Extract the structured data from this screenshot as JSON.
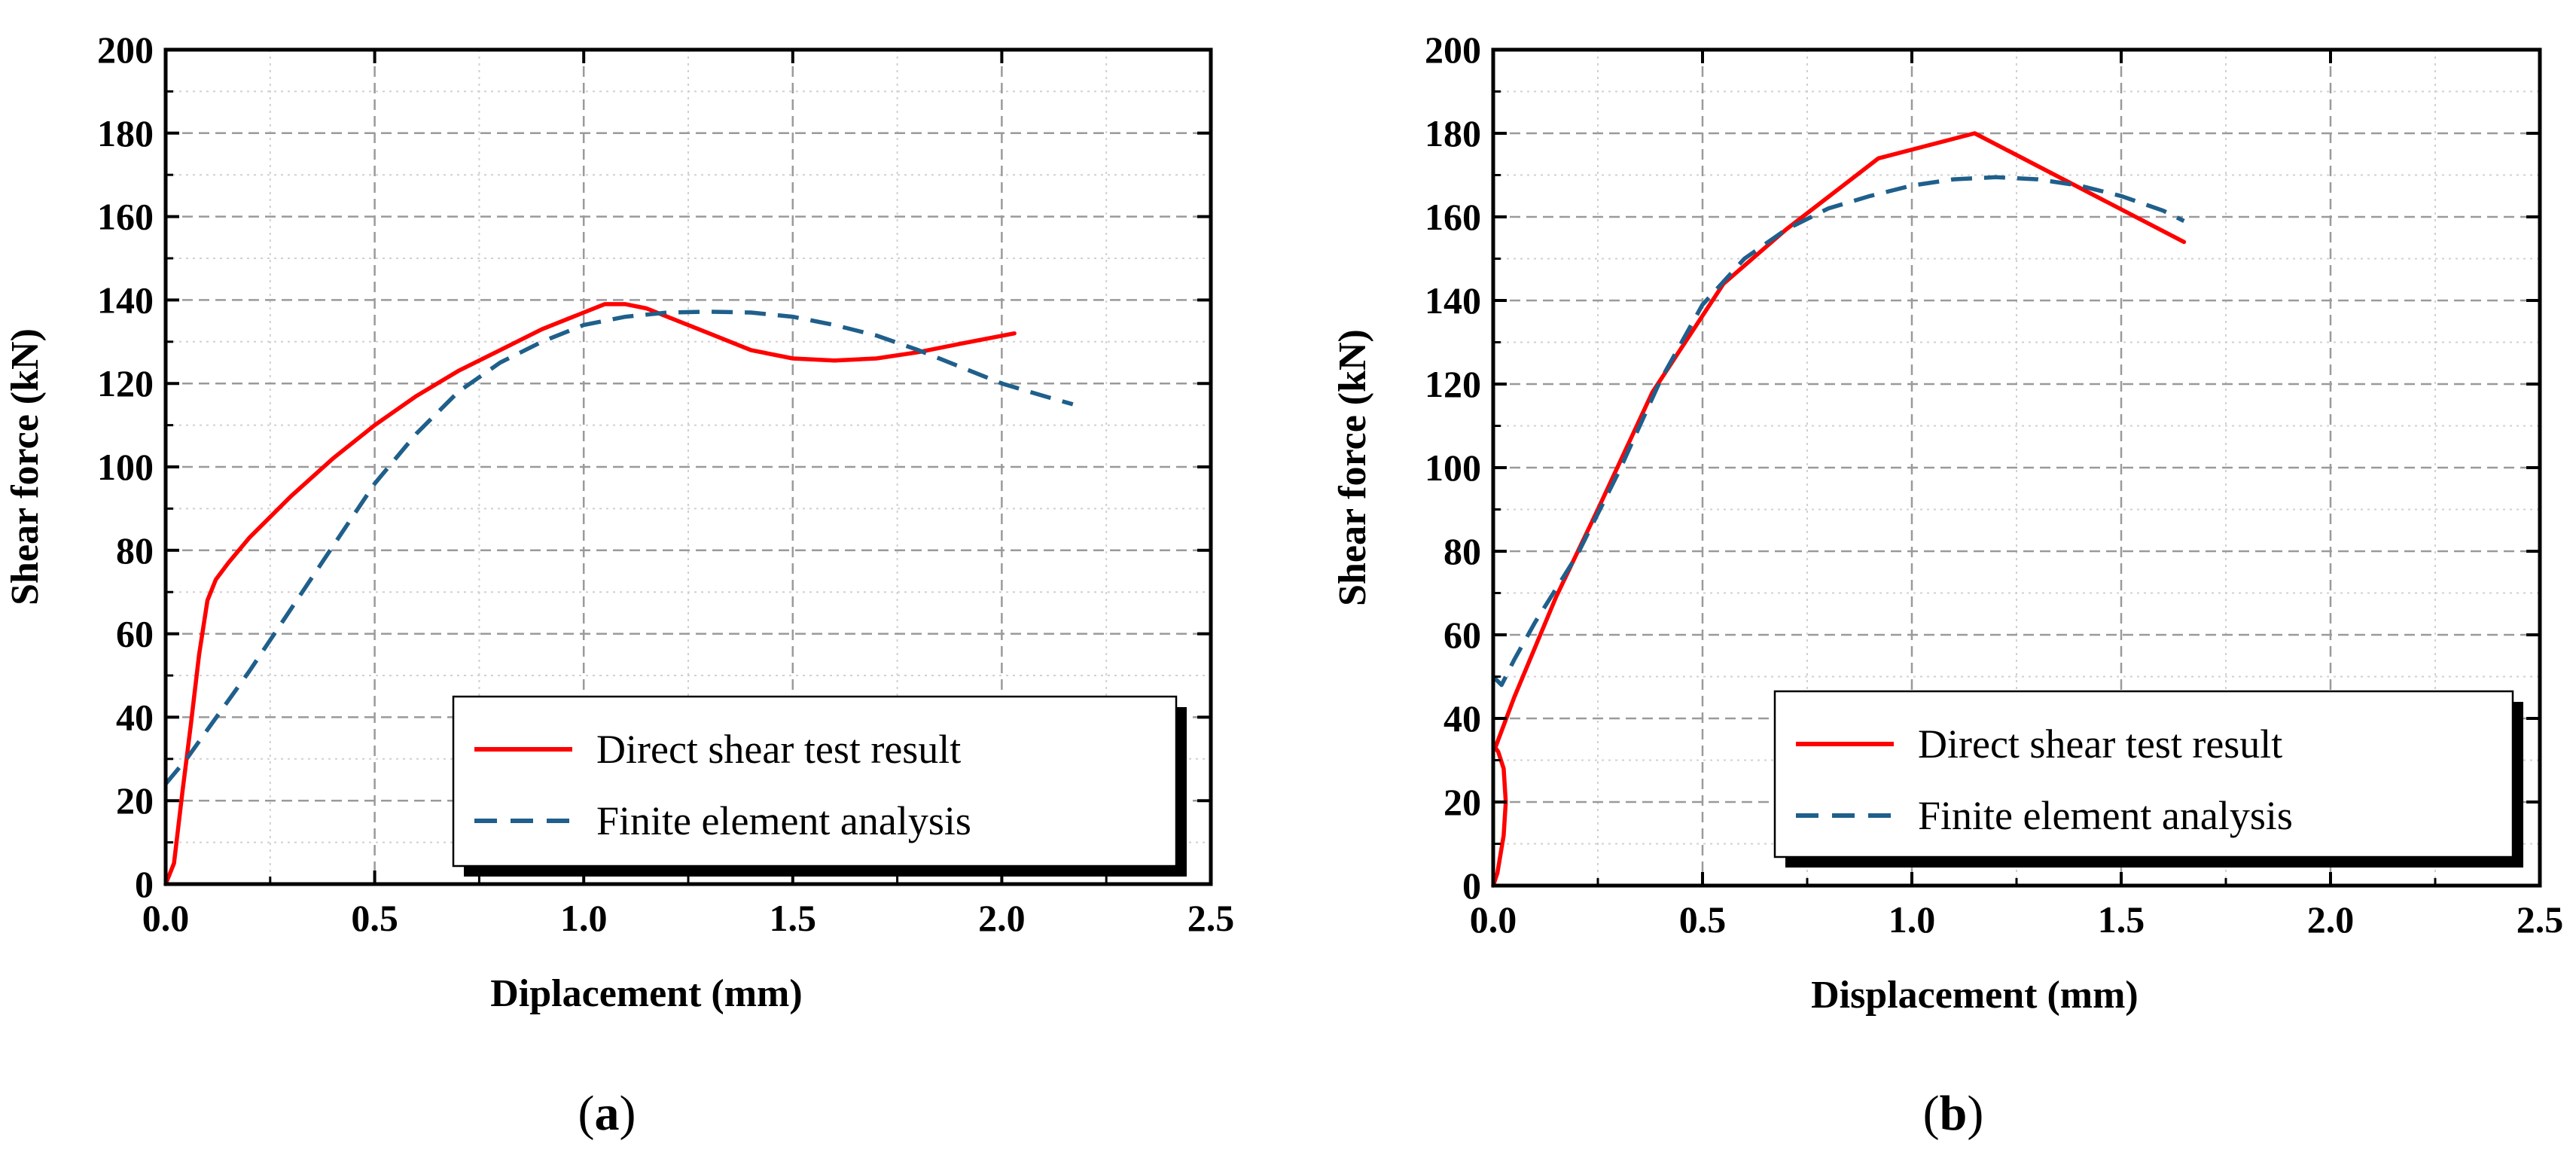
{
  "chart_data": [
    {
      "type": "line",
      "panel": "a",
      "caption": {
        "open": "(",
        "letter": "a",
        "close": ")"
      },
      "xlabel": "Diplacement (mm)",
      "ylabel": "Shear force (kN)",
      "xlim": [
        0,
        2.5
      ],
      "ylim": [
        0,
        200
      ],
      "xticks": [
        0.0,
        0.5,
        1.0,
        1.5,
        2.0,
        2.5
      ],
      "xtick_labels": [
        "0.0",
        "0.5",
        "1.0",
        "1.5",
        "2.0",
        "2.5"
      ],
      "yticks": [
        0,
        20,
        40,
        60,
        80,
        100,
        120,
        140,
        160,
        180,
        200
      ],
      "ytick_labels": [
        "0",
        "20",
        "40",
        "60",
        "80",
        "100",
        "120",
        "140",
        "160",
        "180",
        "200"
      ],
      "grid": true,
      "legend_position": "bottom-right",
      "series": [
        {
          "name": "Direct shear test result",
          "color": "#ff0000",
          "style": "solid",
          "x": [
            0.0,
            0.02,
            0.04,
            0.06,
            0.08,
            0.1,
            0.12,
            0.15,
            0.2,
            0.3,
            0.4,
            0.5,
            0.6,
            0.7,
            0.8,
            0.9,
            1.0,
            1.05,
            1.1,
            1.15,
            1.2,
            1.3,
            1.4,
            1.5,
            1.6,
            1.7,
            1.8,
            1.9,
            2.03
          ],
          "y": [
            0,
            5,
            22,
            38,
            55,
            68,
            73,
            77,
            83,
            93,
            102,
            110,
            117,
            123,
            128,
            133,
            137,
            139,
            139,
            138,
            136,
            132,
            128,
            126,
            125.5,
            126,
            127.5,
            129.5,
            132
          ]
        },
        {
          "name": "Finite element analysis",
          "color": "#1f5f8b",
          "style": "dashed",
          "x": [
            0.0,
            0.05,
            0.1,
            0.2,
            0.3,
            0.4,
            0.5,
            0.6,
            0.7,
            0.8,
            0.9,
            1.0,
            1.1,
            1.2,
            1.3,
            1.4,
            1.5,
            1.6,
            1.7,
            1.8,
            1.9,
            2.0,
            2.1,
            2.17
          ],
          "y": [
            24,
            30,
            37,
            51,
            66,
            81,
            96,
            108,
            118,
            125,
            130,
            134,
            136,
            137,
            137.2,
            137,
            136,
            134,
            131.5,
            128,
            124,
            120,
            117,
            115
          ]
        }
      ]
    },
    {
      "type": "line",
      "panel": "b",
      "caption": {
        "open": "(",
        "letter": "b",
        "close": ")"
      },
      "xlabel": "Displacement (mm)",
      "ylabel": "Shear force (kN)",
      "xlim": [
        0,
        2.5
      ],
      "ylim": [
        0,
        200
      ],
      "xticks": [
        0.0,
        0.5,
        1.0,
        1.5,
        2.0,
        2.5
      ],
      "xtick_labels": [
        "0.0",
        "0.5",
        "1.0",
        "1.5",
        "2.0",
        "2.5"
      ],
      "yticks": [
        0,
        20,
        40,
        60,
        80,
        100,
        120,
        140,
        160,
        180,
        200
      ],
      "ytick_labels": [
        "0",
        "20",
        "40",
        "60",
        "80",
        "100",
        "120",
        "140",
        "160",
        "180",
        "200"
      ],
      "grid": true,
      "legend_position": "bottom-right",
      "series": [
        {
          "name": "Direct shear test result",
          "color": "#ff0000",
          "style": "solid",
          "x": [
            0.0,
            0.01,
            0.025,
            0.03,
            0.025,
            0.012,
            0.005,
            0.05,
            0.1,
            0.15,
            0.25,
            0.38,
            0.55,
            0.7,
            0.92,
            1.15,
            1.65
          ],
          "y": [
            0,
            3,
            12,
            20,
            28,
            32,
            33,
            45,
            57,
            69,
            90,
            118,
            144,
            157,
            174,
            180,
            154
          ]
        },
        {
          "name": "Finite element analysis",
          "color": "#1f5f8b",
          "style": "dashed",
          "x": [
            0.0,
            0.02,
            0.05,
            0.1,
            0.2,
            0.3,
            0.4,
            0.5,
            0.6,
            0.7,
            0.8,
            0.9,
            1.0,
            1.1,
            1.2,
            1.3,
            1.4,
            1.5,
            1.6,
            1.65
          ],
          "y": [
            50,
            48,
            54,
            63,
            79,
            99,
            121,
            139,
            150,
            157,
            162,
            165,
            167.5,
            169,
            169.5,
            169,
            167.5,
            165,
            161.5,
            159
          ]
        }
      ]
    }
  ]
}
